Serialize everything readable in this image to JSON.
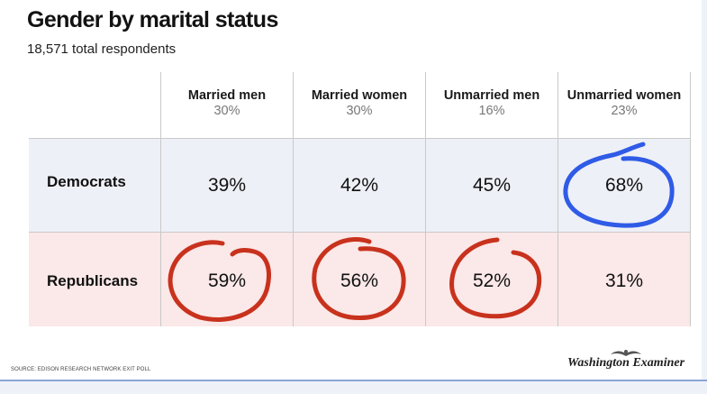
{
  "header": {
    "title": "Gender by marital status",
    "subtitle": "18,571 total respondents"
  },
  "columns": [
    {
      "name": "Married men",
      "share": "30%"
    },
    {
      "name": "Married women",
      "share": "30%"
    },
    {
      "name": "Unmarried men",
      "share": "16%"
    },
    {
      "name": "Unmarried women",
      "share": "23%"
    }
  ],
  "rows": [
    {
      "label": "Democrats",
      "values": [
        "39%",
        "42%",
        "45%",
        "68%"
      ]
    },
    {
      "label": "Republicans",
      "values": [
        "59%",
        "56%",
        "52%",
        "31%"
      ]
    }
  ],
  "annotations": {
    "blue_circled": [
      "Democrats / Unmarried women"
    ],
    "red_circled": [
      "Republicans / Married men",
      "Republicans / Married women",
      "Republicans / Unmarried men"
    ],
    "blue_color": "#2f5be6",
    "red_color": "#c8321d"
  },
  "colors": {
    "democrats_row": "#eef0f7",
    "republicans_row": "#fbe8e8"
  },
  "footer": {
    "source": "SOURCE: EDISON RESEARCH NETWORK EXIT POLL",
    "logo": "Washington Examiner"
  },
  "chart_data": {
    "type": "table",
    "title": "Gender by marital status",
    "subtitle": "18,571 total respondents",
    "columns": [
      "Married men",
      "Married women",
      "Unmarried men",
      "Unmarried women"
    ],
    "column_shares": [
      30,
      30,
      16,
      23
    ],
    "rows": [
      "Democrats",
      "Republicans"
    ],
    "values": [
      [
        39,
        42,
        45,
        68
      ],
      [
        59,
        56,
        52,
        31
      ]
    ]
  }
}
